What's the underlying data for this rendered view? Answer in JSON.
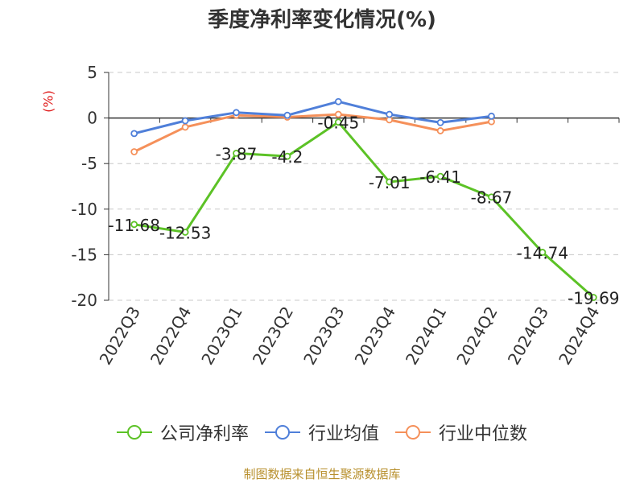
{
  "chart_data": {
    "type": "line",
    "title": "季度净利率变化情况(%)",
    "ylabel": "(%)",
    "xlabel": "",
    "categories": [
      "2022Q3",
      "2022Q4",
      "2023Q1",
      "2023Q2",
      "2023Q3",
      "2023Q4",
      "2024Q1",
      "2024Q2",
      "2024Q3",
      "2024Q4"
    ],
    "ylim": [
      -20,
      5
    ],
    "yticks": [
      5,
      0,
      -5,
      -10,
      -15,
      -20
    ],
    "grid": true,
    "legend_position": "bottom",
    "series": [
      {
        "name": "公司净利率",
        "color": "#5cc226",
        "values": [
          -11.68,
          -12.53,
          -3.87,
          -4.2,
          -0.45,
          -7.01,
          -6.41,
          -8.67,
          -14.74,
          -19.69
        ],
        "labels": [
          "-11.68",
          "-12.53",
          "-3.87",
          "-4.2",
          "-0.45",
          "-7.01",
          "-6.41",
          "-8.67",
          "-14.74",
          "-19.69"
        ]
      },
      {
        "name": "行业均值",
        "color": "#4f7fd9",
        "values": [
          -1.7,
          -0.3,
          0.6,
          0.3,
          1.8,
          0.4,
          -0.5,
          0.2,
          null,
          null
        ]
      },
      {
        "name": "行业中位数",
        "color": "#f5905a",
        "values": [
          -3.7,
          -1.0,
          0.3,
          0.1,
          0.4,
          -0.2,
          -1.4,
          -0.4,
          null,
          null
        ]
      }
    ]
  },
  "source": "制图数据来自恒生聚源数据库"
}
